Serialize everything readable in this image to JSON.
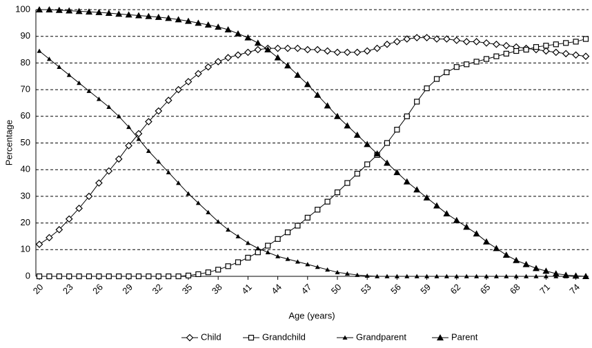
{
  "chart_data": {
    "type": "line",
    "y_label": "Percentage",
    "x_label": "Age (years)",
    "x": [
      20,
      21,
      22,
      23,
      24,
      25,
      26,
      27,
      28,
      29,
      30,
      31,
      32,
      33,
      34,
      35,
      36,
      37,
      38,
      39,
      40,
      41,
      42,
      43,
      44,
      45,
      46,
      47,
      48,
      49,
      50,
      51,
      52,
      53,
      54,
      55,
      56,
      57,
      58,
      59,
      60,
      61,
      62,
      63,
      64,
      65,
      66,
      67,
      68,
      69,
      70,
      71,
      72,
      73,
      74,
      75
    ],
    "xlim": [
      20,
      75
    ],
    "xticks": [
      20,
      23,
      26,
      29,
      32,
      35,
      38,
      41,
      44,
      47,
      50,
      53,
      56,
      59,
      62,
      65,
      68,
      71,
      74
    ],
    "ylim": [
      0,
      100
    ],
    "yticks": [
      0,
      10,
      20,
      30,
      40,
      50,
      60,
      70,
      80,
      90,
      100
    ],
    "grid": true,
    "legend": "bottom",
    "series": [
      {
        "name": "Child",
        "color": "#000000",
        "marker": "diamond",
        "values": [
          12,
          14.5,
          17.5,
          21.5,
          25.5,
          30,
          35,
          39.5,
          44,
          49,
          53.5,
          58,
          62,
          66,
          70,
          73,
          76,
          78.5,
          80.5,
          82,
          83,
          84,
          85,
          85.5,
          85.5,
          85.5,
          85.5,
          85,
          85,
          84.5,
          84,
          84,
          84,
          84.5,
          85.5,
          87,
          88,
          89,
          89.5,
          89.5,
          89,
          89,
          88.5,
          88,
          88,
          87.5,
          87,
          86.5,
          86,
          85.5,
          85,
          84.5,
          84,
          83.5,
          83,
          82.5
        ]
      },
      {
        "name": "Grandchild",
        "color": "#000000",
        "marker": "square",
        "values": [
          0,
          0,
          0,
          0,
          0,
          0,
          0,
          0,
          0,
          0,
          0,
          0,
          0,
          0,
          0,
          0.3,
          0.8,
          1.5,
          2.5,
          3.8,
          5.3,
          7,
          9,
          11.5,
          14,
          16.5,
          19,
          22,
          25,
          28,
          31.5,
          35,
          38.5,
          42,
          45.5,
          50,
          55,
          60,
          65.5,
          70.5,
          74,
          76.5,
          78.5,
          79.5,
          80.5,
          81.5,
          82.5,
          83.5,
          84.5,
          85,
          86,
          86.5,
          87,
          87.5,
          88,
          89
        ]
      },
      {
        "name": "Grandparent",
        "color": "#000000",
        "marker": "small-triangle",
        "values": [
          84.5,
          81.5,
          78.5,
          75.5,
          72.5,
          69.5,
          66.5,
          63.5,
          60,
          56,
          51.5,
          47,
          43,
          39,
          35,
          31,
          27.5,
          24,
          20.5,
          17.5,
          15,
          12.5,
          10.5,
          9,
          7.5,
          6.5,
          5.5,
          4.5,
          3.5,
          2.5,
          1.5,
          1,
          0.5,
          0.2,
          0,
          0,
          0,
          0,
          0,
          0,
          0,
          0,
          0,
          0,
          0,
          0,
          0,
          0,
          0,
          0,
          0,
          0,
          0,
          0,
          0,
          0
        ]
      },
      {
        "name": "Parent",
        "color": "#000000",
        "marker": "triangle",
        "values": [
          100,
          100,
          99.8,
          99.6,
          99.4,
          99.2,
          99,
          98.7,
          98.4,
          98.1,
          97.8,
          97.5,
          97.2,
          96.8,
          96.3,
          95.7,
          95,
          94.3,
          93.5,
          92.5,
          91,
          89.5,
          87.5,
          85,
          82,
          79,
          75.5,
          72,
          68,
          64,
          60,
          56.5,
          53,
          49.5,
          46,
          42.5,
          39,
          35.5,
          32.5,
          29.5,
          26.5,
          23.5,
          21,
          18.5,
          16,
          13,
          10.5,
          8,
          6,
          4.5,
          3,
          2,
          1,
          0.5,
          0.2,
          0
        ]
      }
    ]
  }
}
